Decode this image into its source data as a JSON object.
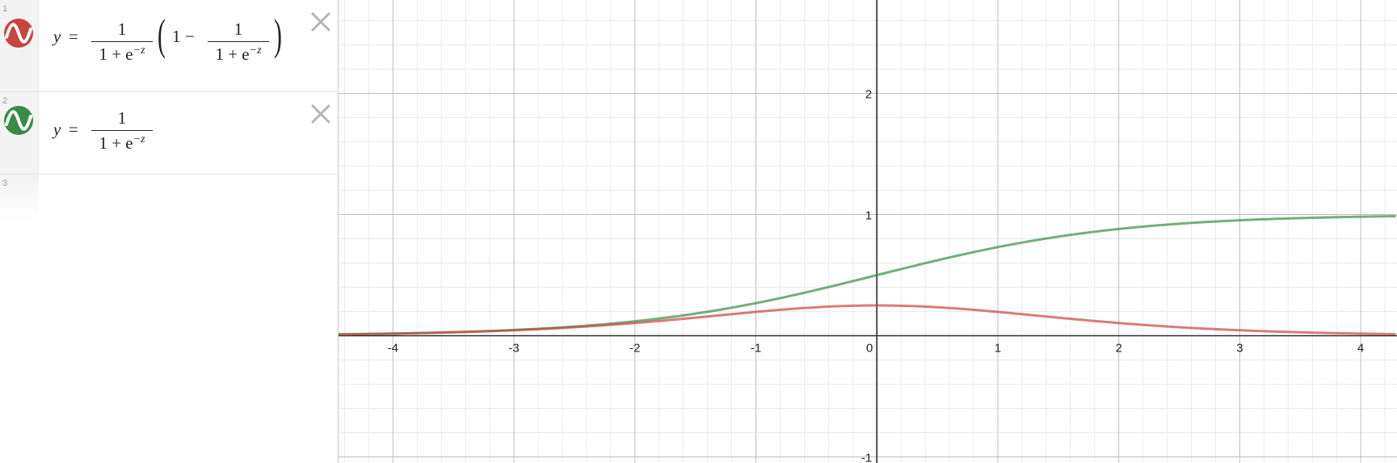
{
  "expressions": [
    {
      "index": "1",
      "color": "#c74440",
      "icon": "curve-icon",
      "lhs": "y",
      "eq": "=",
      "frac1_num": "1",
      "frac1_den": "1 + e",
      "exp": "−z",
      "inner_prefix": "1 −",
      "frac2_num": "1",
      "frac2_den": "1 + e",
      "exp2": "−z"
    },
    {
      "index": "2",
      "color": "#388c46",
      "icon": "curve-icon",
      "lhs": "y",
      "eq": "=",
      "frac1_num": "1",
      "frac1_den": "1 + e",
      "exp": "−z"
    },
    {
      "index": "3"
    }
  ],
  "close_icon": "close-icon",
  "graph": {
    "x_ticks": [
      "-4",
      "-3",
      "-2",
      "-1",
      "0",
      "1",
      "2",
      "3",
      "4"
    ],
    "y_ticks": [
      "2",
      "1",
      "-1"
    ],
    "x_range": [
      -4.45,
      4.3
    ],
    "y_range": [
      -1.05,
      2.77
    ],
    "minor_grid": true,
    "major_grid": true
  },
  "chart_data": {
    "type": "line",
    "xlim": [
      -4.45,
      4.3
    ],
    "ylim": [
      -1.05,
      2.77
    ],
    "x_ticks": [
      -4,
      -3,
      -2,
      -1,
      0,
      1,
      2,
      3,
      4
    ],
    "y_ticks": [
      -1,
      1,
      2
    ],
    "series": [
      {
        "color": "#c74440",
        "function": "sigmoid_derivative",
        "x": [
          -4,
          -3,
          -2,
          -1,
          0,
          1,
          2,
          3,
          4
        ],
        "y": [
          0.018,
          0.045,
          0.105,
          0.197,
          0.25,
          0.197,
          0.105,
          0.045,
          0.018
        ]
      },
      {
        "color": "#388c46",
        "function": "sigmoid",
        "x": [
          -4,
          -3,
          -2,
          -1,
          0,
          1,
          2,
          3,
          4
        ],
        "y": [
          0.018,
          0.047,
          0.119,
          0.269,
          0.5,
          0.731,
          0.881,
          0.953,
          0.982
        ]
      }
    ]
  }
}
